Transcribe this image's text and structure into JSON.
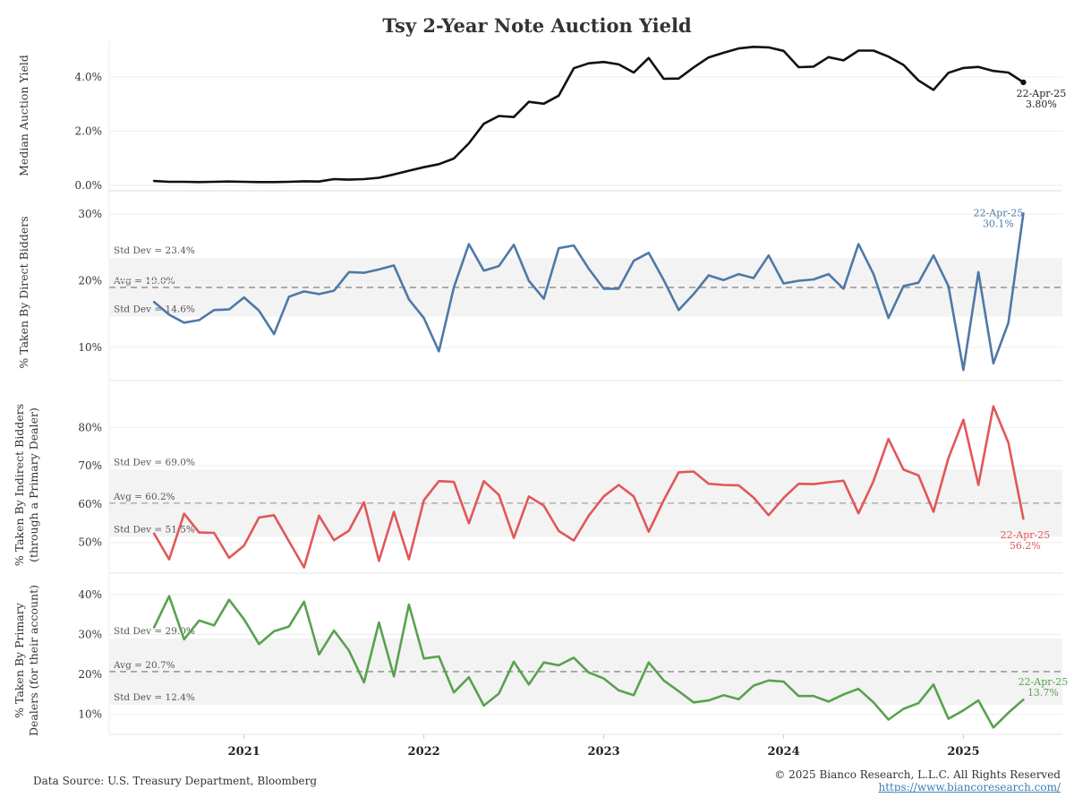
{
  "title": "Tsy 2-Year Note Auction Yield",
  "footer": {
    "source": "Data Source: U.S. Treasury Department, Bloomberg",
    "copyright": "© 2025 Bianco Research, L.L.C. All Rights Reserved",
    "url": "https://www.biancoresearch.com/"
  },
  "chart_data": [
    {
      "type": "line",
      "ylabel": [
        "Median Auction Yield"
      ],
      "yticks": [
        {
          "v": 0,
          "label": "0.0%"
        },
        {
          "v": 2,
          "label": "2.0%"
        },
        {
          "v": 4,
          "label": "4.0%"
        }
      ],
      "ylim": [
        -0.2,
        5.35
      ],
      "color": "#111111",
      "zero_line": true,
      "t0": 2020.5,
      "dt": 0.08333,
      "values": [
        0.16,
        0.13,
        0.13,
        0.12,
        0.13,
        0.14,
        0.13,
        0.12,
        0.12,
        0.13,
        0.15,
        0.14,
        0.23,
        0.21,
        0.23,
        0.28,
        0.4,
        0.54,
        0.67,
        0.78,
        0.99,
        1.55,
        2.27,
        2.56,
        2.52,
        3.08,
        3.01,
        3.31,
        4.32,
        4.5,
        4.55,
        4.46,
        4.16,
        4.7,
        3.93,
        3.94,
        4.35,
        4.72,
        4.89,
        5.05,
        5.11,
        5.09,
        4.96,
        4.36,
        4.38,
        4.73,
        4.61,
        4.97,
        4.97,
        4.75,
        4.44,
        3.87,
        3.52,
        4.15,
        4.33,
        4.37,
        4.22,
        4.16,
        3.8
      ],
      "end_label": {
        "date": "22-Apr-25",
        "value": "3.80%"
      },
      "bands": null
    },
    {
      "type": "line",
      "ylabel": [
        "% Taken By Direct Bidders"
      ],
      "yticks": [
        {
          "v": 10,
          "label": "10%"
        },
        {
          "v": 20,
          "label": "20%"
        },
        {
          "v": 30,
          "label": "30%"
        }
      ],
      "ylim": [
        5,
        31.5
      ],
      "color": "#4e79a7",
      "zero_line": false,
      "t0": 2020.5,
      "dt": 0.08333,
      "values": [
        16.8,
        14.9,
        13.7,
        14.1,
        15.6,
        15.7,
        17.5,
        15.5,
        12.0,
        17.6,
        18.4,
        18.0,
        18.5,
        21.3,
        21.2,
        21.7,
        22.3,
        17.2,
        14.4,
        9.4,
        19.0,
        25.5,
        21.5,
        22.2,
        25.4,
        20.0,
        17.3,
        24.9,
        25.3,
        21.8,
        18.8,
        18.8,
        23.0,
        24.2,
        20.1,
        15.6,
        18.0,
        20.8,
        20.1,
        21.0,
        20.4,
        23.8,
        19.6,
        20.0,
        20.2,
        21.0,
        18.8,
        25.5,
        21.0,
        14.4,
        19.2,
        19.7,
        23.8,
        19.2,
        6.6,
        21.3,
        7.6,
        13.7,
        30.1
      ],
      "end_label": {
        "date": "22-Apr-25",
        "value": "30.1%"
      },
      "bands": {
        "top": 23.4,
        "avg": 19.0,
        "bottom": 14.6,
        "top_label": "Std Dev = 23.4%",
        "avg_label": "Avg = 19.0%",
        "bottom_label": "Std Dev = 14.6%"
      }
    },
    {
      "type": "line",
      "ylabel": [
        "% Taken By Indirect Bidders",
        "(through a Primary Dealer)"
      ],
      "yticks": [
        {
          "v": 50,
          "label": "50%"
        },
        {
          "v": 60,
          "label": "60%"
        },
        {
          "v": 70,
          "label": "70%"
        },
        {
          "v": 80,
          "label": "80%"
        }
      ],
      "ylim": [
        42,
        88
      ],
      "color": "#e15759",
      "zero_line": false,
      "t0": 2020.5,
      "dt": 0.08333,
      "values": [
        52.3,
        45.6,
        57.5,
        52.6,
        52.5,
        46.0,
        49.2,
        56.5,
        57.1,
        50.3,
        43.5,
        57.0,
        50.6,
        53.1,
        60.5,
        45.2,
        58.0,
        45.6,
        61.0,
        66.0,
        65.8,
        55.0,
        66.0,
        62.4,
        51.2,
        62.0,
        59.6,
        53.0,
        50.5,
        57.0,
        62.0,
        65.0,
        62.0,
        52.8,
        61.0,
        68.3,
        68.5,
        65.3,
        65.0,
        64.9,
        61.7,
        57.1,
        61.6,
        65.3,
        65.2,
        65.7,
        66.1,
        57.6,
        66.0,
        77.0,
        69.0,
        67.5,
        58.0,
        72.0,
        82.0,
        65.0,
        85.5,
        76.0,
        56.2
      ],
      "end_label": {
        "date": "22-Apr-25",
        "value": "56.2%"
      },
      "bands": {
        "top": 69.0,
        "avg": 60.2,
        "bottom": 51.5,
        "top_label": "Std Dev = 69.0%",
        "avg_label": "Avg = 60.2%",
        "bottom_label": "Std Dev = 51.5%"
      }
    },
    {
      "type": "line",
      "ylabel": [
        "% Taken By Primary",
        "Dealers (for their account)"
      ],
      "yticks": [
        {
          "v": 10,
          "label": "10%"
        },
        {
          "v": 20,
          "label": "20%"
        },
        {
          "v": 30,
          "label": "30%"
        },
        {
          "v": 40,
          "label": "40%"
        }
      ],
      "ylim": [
        5,
        42
      ],
      "color": "#59a14f",
      "zero_line": false,
      "t0": 2020.5,
      "dt": 0.08333,
      "values": [
        31.8,
        39.6,
        28.8,
        33.5,
        32.3,
        38.7,
        33.8,
        27.6,
        30.8,
        32.0,
        38.2,
        25.0,
        31.0,
        26.0,
        18.0,
        33.0,
        19.5,
        37.5,
        24.0,
        24.5,
        15.5,
        19.3,
        12.2,
        15.2,
        23.2,
        17.5,
        23.0,
        22.3,
        24.2,
        20.5,
        19.0,
        16.0,
        14.8,
        23.0,
        18.5,
        15.8,
        13.0,
        13.5,
        14.8,
        13.8,
        17.2,
        18.5,
        18.2,
        14.6,
        14.6,
        13.2,
        15.0,
        16.4,
        13.0,
        8.7,
        11.4,
        12.8,
        17.5,
        8.9,
        11.0,
        13.5,
        6.7,
        10.4,
        13.7
      ],
      "end_label": {
        "date": "22-Apr-25",
        "value": "13.7%"
      },
      "bands": {
        "top": 29.0,
        "avg": 20.7,
        "bottom": 12.4,
        "top_label": "Std Dev = 29.0%",
        "avg_label": "Avg = 20.7%",
        "bottom_label": "Std Dev = 12.4%"
      }
    }
  ],
  "xaxis": {
    "ticks": [
      {
        "v": 2021,
        "label": "2021"
      },
      {
        "v": 2022,
        "label": "2022"
      },
      {
        "v": 2023,
        "label": "2023"
      },
      {
        "v": 2024,
        "label": "2024"
      },
      {
        "v": 2025,
        "label": "2025"
      }
    ],
    "xlim": [
      2020.25,
      2025.55
    ]
  }
}
